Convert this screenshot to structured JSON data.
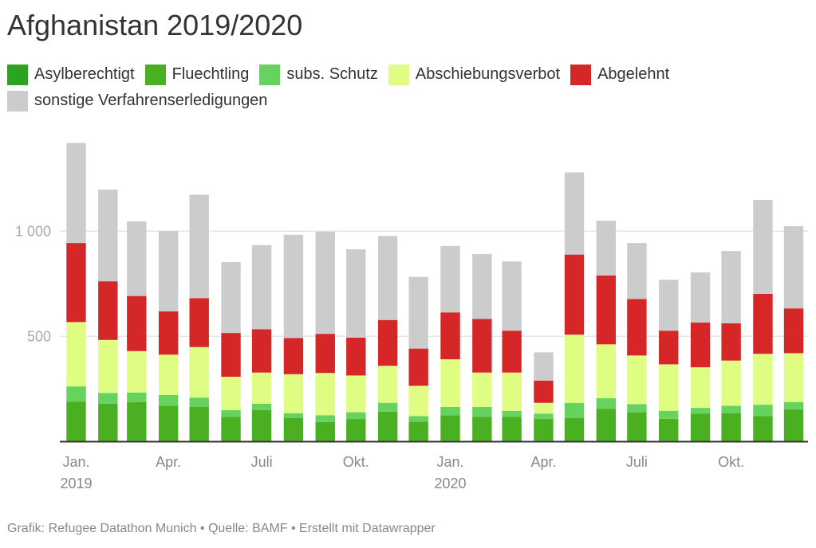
{
  "chart_data": {
    "type": "bar",
    "stacked": true,
    "title": "Afghanistan 2019/2020",
    "xlabel": "",
    "ylabel": "",
    "ylim": [
      0,
      1420
    ],
    "yticks": [
      {
        "value": 500,
        "label": "500"
      },
      {
        "value": 1000,
        "label": "1 000"
      }
    ],
    "grid": true,
    "legend_position": "top-left",
    "categories": [
      "2019-01",
      "2019-02",
      "2019-03",
      "2019-04",
      "2019-05",
      "2019-06",
      "2019-07",
      "2019-08",
      "2019-09",
      "2019-10",
      "2019-11",
      "2019-12",
      "2020-01",
      "2020-02",
      "2020-03",
      "2020-04",
      "2020-05",
      "2020-06",
      "2020-07",
      "2020-08",
      "2020-09",
      "2020-10",
      "2020-11",
      "2020-12"
    ],
    "xticks": [
      {
        "index": 0,
        "label": "Jan.",
        "sublabel": "2019"
      },
      {
        "index": 3,
        "label": "Apr.",
        "sublabel": ""
      },
      {
        "index": 6,
        "label": "Juli",
        "sublabel": ""
      },
      {
        "index": 9,
        "label": "Okt.",
        "sublabel": ""
      },
      {
        "index": 12,
        "label": "Jan.",
        "sublabel": "2020"
      },
      {
        "index": 15,
        "label": "Apr.",
        "sublabel": ""
      },
      {
        "index": 18,
        "label": "Juli",
        "sublabel": ""
      },
      {
        "index": 21,
        "label": "Okt.",
        "sublabel": ""
      }
    ],
    "series": [
      {
        "name": "Asylberechtigt",
        "color": "#2aa421",
        "values": [
          2,
          2,
          4,
          2,
          2,
          2,
          2,
          4,
          2,
          2,
          2,
          2,
          4,
          2,
          3,
          4,
          2,
          2,
          2,
          4,
          2,
          3,
          2,
          2
        ]
      },
      {
        "name": "Fluechtling",
        "color": "#4aaf21",
        "values": [
          188,
          178,
          184,
          168,
          162,
          115,
          147,
          107,
          91,
          105,
          140,
          93,
          121,
          115,
          114,
          103,
          109,
          154,
          137,
          104,
          131,
          132,
          119,
          151
        ]
      },
      {
        "name": "subs. Schutz",
        "color": "#66d35f",
        "values": [
          72,
          51,
          45,
          51,
          45,
          32,
          31,
          24,
          32,
          32,
          42,
          26,
          39,
          47,
          28,
          26,
          73,
          50,
          39,
          38,
          27,
          35,
          54,
          35
        ]
      },
      {
        "name": "Abschiebungsverbot",
        "color": "#dffd82",
        "values": [
          306,
          252,
          197,
          192,
          240,
          159,
          148,
          185,
          201,
          175,
          176,
          144,
          227,
          164,
          183,
          51,
          324,
          256,
          231,
          221,
          193,
          215,
          242,
          232
        ]
      },
      {
        "name": "Abgelehnt",
        "color": "#d62728",
        "values": [
          376,
          279,
          262,
          206,
          233,
          208,
          206,
          172,
          186,
          180,
          218,
          177,
          223,
          255,
          199,
          106,
          381,
          328,
          269,
          160,
          213,
          177,
          285,
          213
        ]
      },
      {
        "name": "sonstige Verfahrenserledigungen",
        "color": "#cccccc",
        "values": [
          476,
          436,
          355,
          382,
          492,
          337,
          400,
          491,
          486,
          420,
          399,
          341,
          316,
          308,
          329,
          134,
          391,
          260,
          266,
          242,
          238,
          344,
          447,
          391
        ]
      }
    ]
  },
  "legend": {
    "rows": [
      [
        0,
        1,
        2,
        3,
        4
      ],
      [
        5
      ]
    ]
  },
  "footer": "Grafik: Refugee Datathon Munich • Quelle: BAMF • Erstellt mit Datawrapper"
}
